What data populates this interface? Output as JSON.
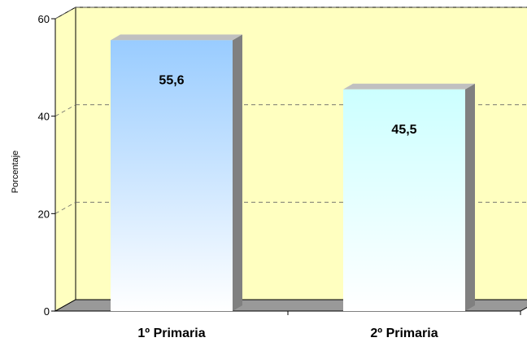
{
  "chart_data": {
    "type": "bar",
    "categories": [
      "1º Primaria",
      "2º Primaria"
    ],
    "values": [
      55.6,
      45.5
    ],
    "value_labels": [
      "55,6",
      "45,5"
    ],
    "title": "",
    "xlabel": "",
    "ylabel": "Porcentaje",
    "ylim": [
      0,
      60
    ],
    "yticks": [
      0,
      20,
      40,
      60
    ],
    "grid": true,
    "style": "3d",
    "colors": {
      "plot_background": "#ffffc0",
      "floor": "#999999",
      "bar1_top": "#99ccff",
      "bar1_bottom": "#ffffff",
      "bar2_top": "#ccffff",
      "bar2_bottom": "#ffffff",
      "bar_side": "#808080"
    }
  }
}
